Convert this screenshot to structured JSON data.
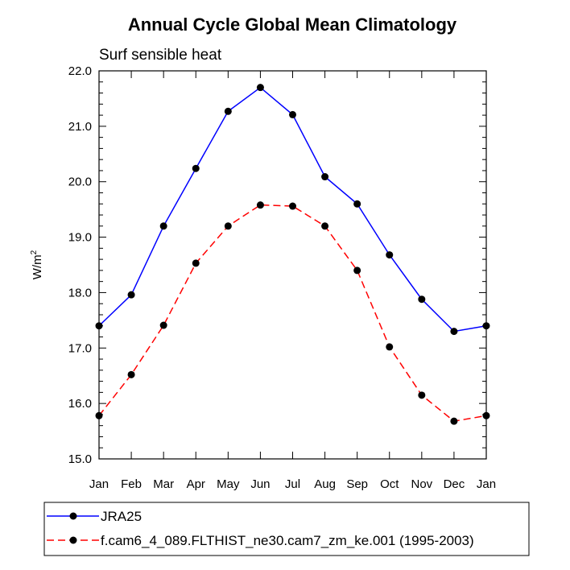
{
  "chart_data": {
    "type": "line",
    "title": "Annual Cycle Global Mean Climatology",
    "subtitle": "Surf sensible heat",
    "ylabel_base": "W/m",
    "ylabel_sup": "2",
    "xlabel": "",
    "categories": [
      "Jan",
      "Feb",
      "Mar",
      "Apr",
      "May",
      "Jun",
      "Jul",
      "Aug",
      "Sep",
      "Oct",
      "Nov",
      "Dec",
      "Jan"
    ],
    "ylim": [
      15.0,
      22.0
    ],
    "yticks": [
      "15.0",
      "16.0",
      "17.0",
      "18.0",
      "19.0",
      "20.0",
      "21.0",
      "22.0"
    ],
    "series": [
      {
        "name": "JRA25",
        "color": "#0000ff",
        "dash": "solid",
        "values": [
          17.4,
          17.96,
          19.2,
          20.24,
          21.27,
          21.7,
          21.21,
          20.09,
          19.6,
          18.68,
          17.88,
          17.3,
          17.4
        ]
      },
      {
        "name": "f.cam6_4_089.FLTHIST_ne30.cam7_zm_ke.001 (1995-2003)",
        "color": "#ff0000",
        "dash": "dashed",
        "values": [
          15.78,
          16.52,
          17.41,
          18.53,
          19.2,
          19.58,
          19.56,
          19.2,
          18.4,
          17.02,
          16.15,
          15.68,
          15.78
        ]
      }
    ]
  }
}
